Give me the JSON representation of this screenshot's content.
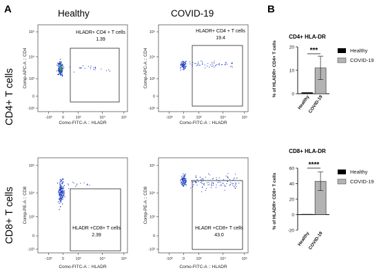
{
  "panel_a_label": "A",
  "panel_b_label": "B",
  "col_healthy": "Healthy",
  "col_covid": "COVID-19",
  "row_cd4": "CD4+ T cells",
  "row_cd8": "CD8+ T cells",
  "colors": {
    "healthy": "#000000",
    "covid": "#b3b3b3",
    "dots": "#1f3fbf",
    "dense": "#2ea84a"
  },
  "chart_data": [
    {
      "type": "scatter",
      "panel": "A",
      "plots": [
        {
          "id": "cd4-healthy",
          "gate_label": "HLADR+ CD4 + T cells",
          "gate_value": "1.39",
          "ylabel": "Comp-APC-A :: CD4",
          "xlabel": "Como-FITC-A :: HLADR",
          "xticks": [
            "-10³",
            "0",
            "10³",
            "10⁴",
            "10⁵"
          ],
          "yticks": [
            "-10³",
            "0",
            "10³",
            "10⁴",
            "10⁵"
          ]
        },
        {
          "id": "cd4-covid",
          "gate_label": "HLADR+ CD4 + T cells",
          "gate_value": "19.4",
          "ylabel": "Comp-APC-A :: CD4",
          "xlabel": "Como-FITC-A :: HLADR",
          "xticks": [
            "-10³",
            "0",
            "10³",
            "10⁴",
            "10⁵"
          ],
          "yticks": [
            "-10³",
            "0",
            "10³",
            "10⁴",
            "10⁵"
          ]
        },
        {
          "id": "cd8-healthy",
          "gate_label": "HLADR +CD8+ T cells",
          "gate_value": "2.39",
          "ylabel": "Comp-PE-A :: CD8",
          "xlabel": "Como-FITC-A :: HLADR",
          "xticks": [
            "-10³",
            "0",
            "10³",
            "10⁴",
            "10⁵"
          ],
          "yticks": [
            "-10³",
            "0",
            "10³",
            "10⁴",
            "10⁵"
          ]
        },
        {
          "id": "cd8-covid",
          "gate_label": "HLADR +CD8+ T cells",
          "gate_value": "43.0",
          "ylabel": "Comp-PE-A :: CD8",
          "xlabel": "Como-FITC-A :: HLADR",
          "xticks": [
            "-10³",
            "0",
            "10³",
            "10⁴",
            "10⁵"
          ],
          "yticks": [
            "-10³",
            "0",
            "10³",
            "10⁴",
            "10⁵"
          ]
        }
      ]
    },
    {
      "type": "bar",
      "title": "CD4+ HLA-DR",
      "categories": [
        "Healthy",
        "COVID-19"
      ],
      "values": [
        0.5,
        11
      ],
      "error": [
        0,
        5
      ],
      "ylabel": "% of HLADR+ CD4+ T cells",
      "ylim": [
        0,
        20
      ],
      "yticks": [
        0,
        10,
        20
      ],
      "significance": "***",
      "legend": [
        "Healthy",
        "COVID-19"
      ]
    },
    {
      "type": "bar",
      "title": "CD8+ HLA-DR",
      "categories": [
        "Healthy",
        "COVID-19"
      ],
      "values": [
        0.5,
        43
      ],
      "error": [
        0,
        12
      ],
      "ylabel": "% of HLADR+ CD8+ T cells",
      "ylim": [
        -20,
        60
      ],
      "yticks": [
        -20,
        0,
        20,
        40,
        60
      ],
      "significance": "****",
      "legend": [
        "Healthy",
        "COVID-19"
      ]
    }
  ]
}
